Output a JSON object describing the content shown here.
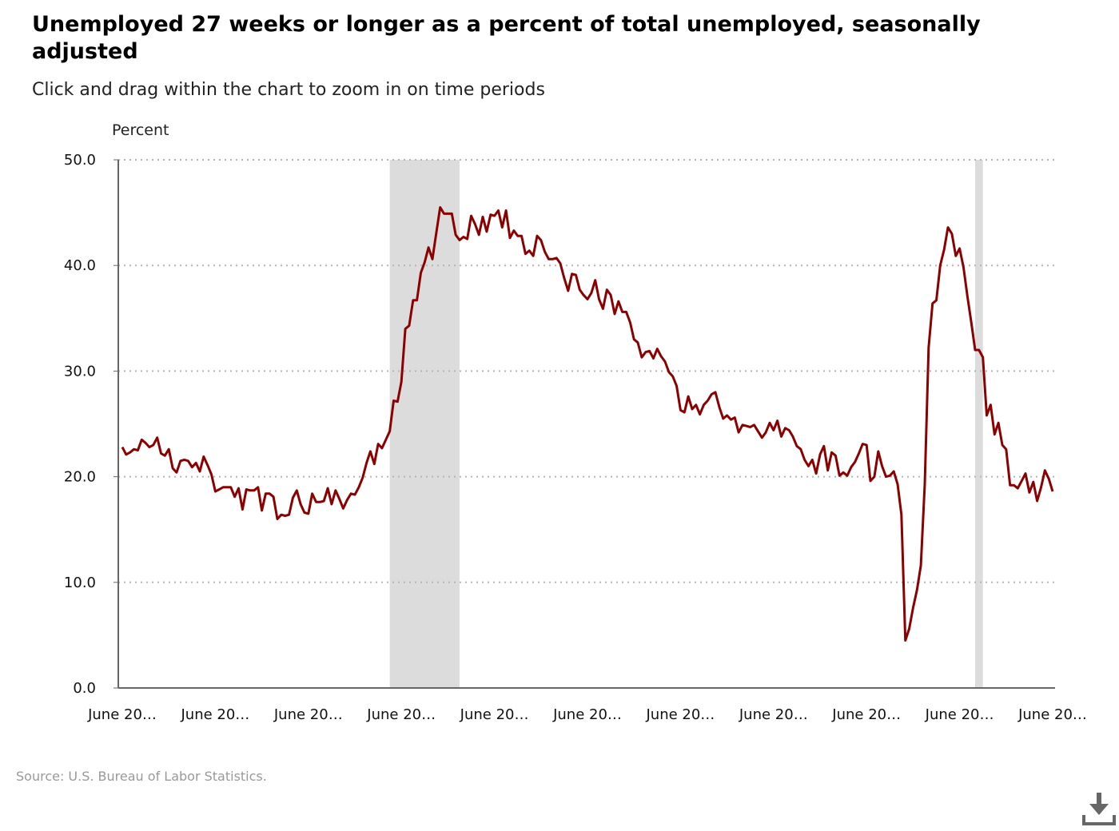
{
  "title": "Unemployed 27 weeks or longer as a percent of total unemployed, seasonally adjusted",
  "subtitle": "Click and drag within the chart to zoom in on time periods",
  "source": "Source: U.S. Bureau of Labor Statistics.",
  "download_icon": "download-icon",
  "colors": {
    "line": "#8b0000",
    "recession": "#dcdcdc",
    "grid": "#b5b5b5",
    "axis": "#666666"
  },
  "chart_data": {
    "type": "line",
    "title": "Unemployed 27 weeks or longer as a percent of total unemployed, seasonally adjusted",
    "xlabel": "",
    "ylabel": "Percent",
    "ylim": [
      0,
      50
    ],
    "yticks": [
      "0.0",
      "10.0",
      "20.0",
      "30.0",
      "40.0",
      "50.0"
    ],
    "xtick_labels": [
      "June 20…",
      "June 20…",
      "June 20…",
      "June 20…",
      "June 20…",
      "June 20…",
      "June 20…",
      "June 20…",
      "June 20…",
      "June 20…",
      "June 20…"
    ],
    "grid": true,
    "legend": "none",
    "recession_shading": [
      {
        "start_index": 69,
        "end_index": 87
      },
      {
        "start_index": 220,
        "end_index": 222
      }
    ],
    "series": [
      {
        "values": [
          22.8,
          22.1,
          22.3,
          22.6,
          22.5,
          23.5,
          23.2,
          22.8,
          23.0,
          23.7,
          22.2,
          22.0,
          22.6,
          20.8,
          20.4,
          21.5,
          21.6,
          21.5,
          20.9,
          21.3,
          20.5,
          21.9,
          21.1,
          20.2,
          18.6,
          18.8,
          19.0,
          19.0,
          19.0,
          18.1,
          18.9,
          16.9,
          18.8,
          18.7,
          18.7,
          19.0,
          16.8,
          18.4,
          18.4,
          18.1,
          16.0,
          16.4,
          16.3,
          16.4,
          18.0,
          18.7,
          17.4,
          16.6,
          16.5,
          18.4,
          17.6,
          17.6,
          17.7,
          18.9,
          17.4,
          18.7,
          17.9,
          17.0,
          17.8,
          18.4,
          18.3,
          19.0,
          19.9,
          21.3,
          22.4,
          21.2,
          23.1,
          22.7,
          23.5,
          24.3,
          27.2,
          27.1,
          29.0,
          34.0,
          34.3,
          36.7,
          36.7,
          39.3,
          40.3,
          41.7,
          40.6,
          43.1,
          45.5,
          44.9,
          44.9,
          44.9,
          42.9,
          42.4,
          42.7,
          42.5,
          44.7,
          43.9,
          42.9,
          44.6,
          43.2,
          44.8,
          44.7,
          45.2,
          43.6,
          45.2,
          42.6,
          43.3,
          42.8,
          42.8,
          41.1,
          41.4,
          40.9,
          42.8,
          42.4,
          41.3,
          40.6,
          40.6,
          40.7,
          40.2,
          38.8,
          37.6,
          39.2,
          39.1,
          37.7,
          37.2,
          36.8,
          37.4,
          38.6,
          36.8,
          35.9,
          37.7,
          37.2,
          35.4,
          36.6,
          35.6,
          35.6,
          34.6,
          33.0,
          32.7,
          31.3,
          31.8,
          31.9,
          31.2,
          32.1,
          31.4,
          30.9,
          29.9,
          29.5,
          28.6,
          26.3,
          26.1,
          27.6,
          26.4,
          26.8,
          25.9,
          26.8,
          27.2,
          27.8,
          28.0,
          26.6,
          25.5,
          25.8,
          25.4,
          25.6,
          24.2,
          24.9,
          24.8,
          24.7,
          24.9,
          24.3,
          23.7,
          24.2,
          25.1,
          24.4,
          25.3,
          23.8,
          24.6,
          24.4,
          23.8,
          22.9,
          22.6,
          21.6,
          21.0,
          21.6,
          20.3,
          22.1,
          22.9,
          20.6,
          22.3,
          22.0,
          20.1,
          20.4,
          20.1,
          20.9,
          21.4,
          22.2,
          23.1,
          23.0,
          19.6,
          20.0,
          22.4,
          21.0,
          20.0,
          20.1,
          20.5,
          19.3,
          16.4,
          4.5,
          5.6,
          7.6,
          9.3,
          11.6,
          19.3,
          32.2,
          36.4,
          36.7,
          40.0,
          41.5,
          43.6,
          43.0,
          40.9,
          41.6,
          39.8,
          37.1,
          34.6,
          32.0,
          32.0,
          31.3,
          25.8,
          26.8,
          24.0,
          25.1,
          23.0,
          22.6,
          19.2,
          19.2,
          18.9,
          19.6,
          20.3,
          18.5,
          19.5,
          17.7,
          19.0,
          20.6,
          19.8,
          18.6
        ]
      }
    ]
  }
}
